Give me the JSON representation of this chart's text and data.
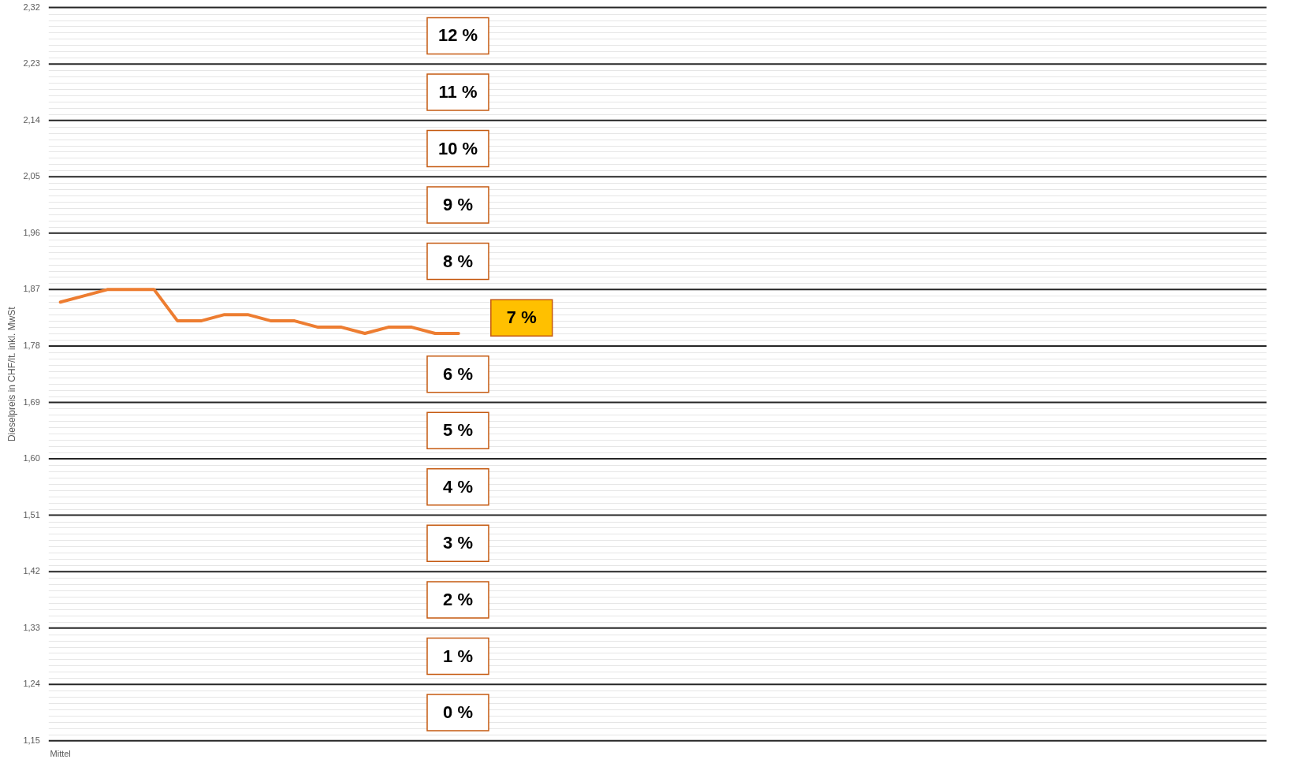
{
  "chart_data": {
    "type": "line",
    "ylabel": "Dieselpreis in CHF/lt. inkl. MwSt",
    "categories": [
      "Mittel",
      null,
      null,
      null,
      null,
      null,
      null,
      null,
      null,
      null,
      null,
      null,
      null,
      null,
      null,
      null,
      null,
      null,
      null,
      null,
      null,
      null,
      null,
      null,
      null,
      null,
      null,
      null,
      null,
      null,
      null,
      null,
      null,
      null,
      null,
      null,
      null,
      null,
      null,
      null,
      null,
      null,
      null,
      null,
      null,
      null,
      null,
      null,
      null,
      null,
      null,
      null
    ],
    "series": [
      {
        "color": "#ed7d31",
        "values": [
          1.85,
          1.86,
          1.87,
          1.87,
          1.87,
          1.82,
          1.82,
          1.83,
          1.83,
          1.82,
          1.82,
          1.81,
          1.81,
          1.8,
          1.81,
          1.81,
          1.8,
          1.8,
          null,
          null,
          null,
          null,
          null,
          null,
          null,
          null,
          null,
          null,
          null,
          null,
          null,
          null,
          null,
          null,
          null,
          null,
          null,
          null,
          null,
          null,
          null,
          null,
          null,
          null,
          null,
          null,
          null,
          null,
          null,
          null,
          null,
          null
        ]
      }
    ],
    "ylim": [
      1.15,
      2.32
    ],
    "yticks": [
      {
        "value": 1.15,
        "label": "1,15"
      },
      {
        "value": 1.24,
        "label": "1,24"
      },
      {
        "value": 1.33,
        "label": "1,33"
      },
      {
        "value": 1.42,
        "label": "1,42"
      },
      {
        "value": 1.51,
        "label": "1,51"
      },
      {
        "value": 1.6,
        "label": "1,60"
      },
      {
        "value": 1.69,
        "label": "1,69"
      },
      {
        "value": 1.78,
        "label": "1,78"
      },
      {
        "value": 1.87,
        "label": "1,87"
      },
      {
        "value": 1.96,
        "label": "1,96"
      },
      {
        "value": 2.05,
        "label": "2,05"
      },
      {
        "value": 2.14,
        "label": "2,14"
      },
      {
        "value": 2.23,
        "label": "2,23"
      },
      {
        "value": 2.32,
        "label": "2,32"
      }
    ],
    "grid": "y",
    "legend": false,
    "marker": "none",
    "line_style": "solid",
    "annotations": [
      "12 %",
      "11 %",
      "10 %",
      "9 %",
      "8 %",
      "7 %",
      "6 %",
      "5 %",
      "4 %",
      "3 %",
      "2 %",
      "1 %",
      "0 %"
    ]
  }
}
